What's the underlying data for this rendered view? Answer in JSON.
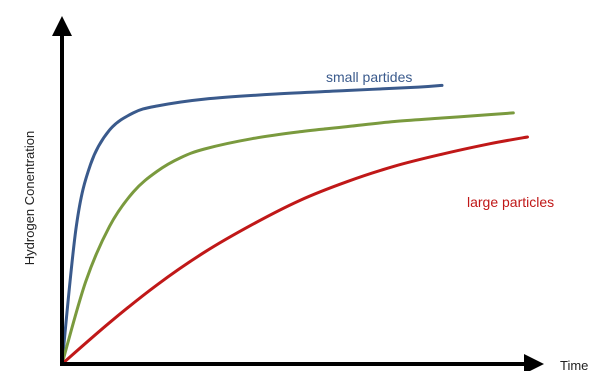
{
  "chart_data": {
    "type": "line",
    "title": "",
    "xlabel": "Time",
    "ylabel": "Hydrogen Conentration",
    "xlim": [
      0,
      100
    ],
    "ylim": [
      0,
      100
    ],
    "x_ticks": false,
    "y_ticks": false,
    "grid": false,
    "legend": "none",
    "series": [
      {
        "name": "small partides",
        "color": "#3a5a8c",
        "x": [
          0,
          3,
          6,
          10,
          15,
          20,
          30,
          45,
          60,
          75,
          80
        ],
        "y": [
          0,
          40,
          58,
          68,
          73,
          75,
          77,
          78.5,
          79.5,
          80.5,
          81
        ]
      },
      {
        "color": "#7a9a3e",
        "x": [
          0,
          5,
          10,
          15,
          20,
          25,
          30,
          40,
          50,
          60,
          70,
          80,
          90,
          95
        ],
        "y": [
          0,
          24,
          40,
          50,
          56,
          60,
          62.5,
          65.5,
          67.5,
          69,
          70.5,
          71.5,
          72.5,
          73
        ]
      },
      {
        "name": "large particles",
        "color": "#c01818",
        "x": [
          0,
          10,
          20,
          30,
          40,
          50,
          60,
          70,
          80,
          90,
          98
        ],
        "y": [
          0,
          12,
          23,
          32.5,
          40.5,
          47.5,
          53,
          57.5,
          61,
          64,
          66
        ]
      }
    ]
  }
}
